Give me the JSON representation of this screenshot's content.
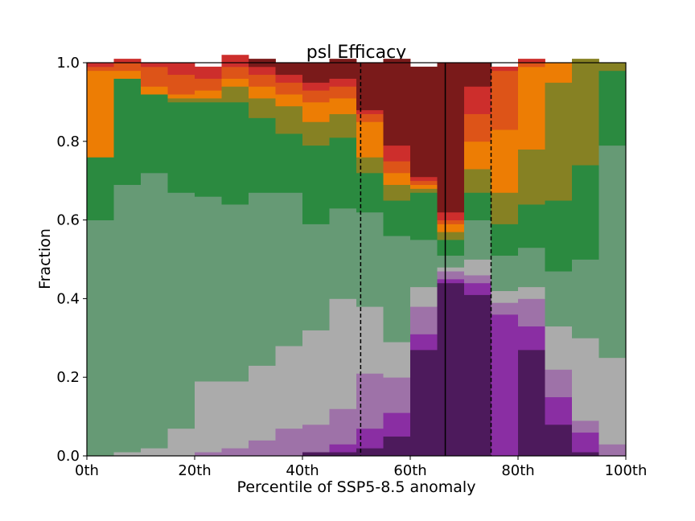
{
  "chart_data": {
    "type": "bar",
    "stacked": true,
    "title": "psl Efficacy",
    "xlabel": "Percentile of SSP5-8.5 anomaly",
    "ylabel": "Fraction",
    "xlim": [
      0,
      100
    ],
    "ylim": [
      0,
      1
    ],
    "bin_width": 5,
    "x": [
      0,
      5,
      10,
      15,
      20,
      25,
      30,
      35,
      40,
      45,
      50,
      55,
      60,
      65,
      70,
      75,
      80,
      85,
      90,
      95
    ],
    "xticks": [
      0,
      20,
      40,
      60,
      80,
      100
    ],
    "xtick_labels": [
      "0th",
      "20th",
      "40th",
      "60th",
      "80th",
      "100th"
    ],
    "yticks": [
      0.0,
      0.2,
      0.4,
      0.6,
      0.8,
      1.0
    ],
    "ytick_labels": [
      "0.0",
      "0.2",
      "0.4",
      "0.6",
      "0.8",
      "1.0"
    ],
    "vlines": [
      {
        "x": 50.8,
        "style": "dashed"
      },
      {
        "x": 66.5,
        "style": "solid"
      },
      {
        "x": 75.0,
        "style": "dashed"
      }
    ],
    "series": [
      {
        "color": "#4d1a5c",
        "values": [
          0,
          0,
          0,
          0,
          0,
          0,
          0,
          0,
          0.01,
          0.01,
          0.02,
          0.05,
          0.27,
          0.44,
          0.41,
          0,
          0.27,
          0.08,
          0.01,
          0
        ]
      },
      {
        "color": "#8a2ea3",
        "values": [
          0,
          0,
          0,
          0,
          0,
          0,
          0,
          0,
          0,
          0.02,
          0.05,
          0.06,
          0.04,
          0.01,
          0.03,
          0.36,
          0.06,
          0.07,
          0.05,
          0
        ]
      },
      {
        "color": "#9e72a8",
        "values": [
          0,
          0,
          0,
          0,
          0.01,
          0.02,
          0.04,
          0.07,
          0.07,
          0.09,
          0.14,
          0.09,
          0.07,
          0.02,
          0.02,
          0.03,
          0.07,
          0.07,
          0.03,
          0.03
        ]
      },
      {
        "color": "#ababab",
        "values": [
          0,
          0.01,
          0.02,
          0.07,
          0.18,
          0.17,
          0.19,
          0.21,
          0.24,
          0.28,
          0.17,
          0.09,
          0.05,
          0.01,
          0.04,
          0.03,
          0.03,
          0.11,
          0.21,
          0.22
        ]
      },
      {
        "color": "#669a75",
        "values": [
          0.6,
          0.68,
          0.7,
          0.6,
          0.47,
          0.45,
          0.44,
          0.39,
          0.27,
          0.23,
          0.24,
          0.27,
          0.12,
          0.03,
          0.1,
          0.09,
          0.1,
          0.14,
          0.2,
          0.54
        ]
      },
      {
        "color": "#2b8a40",
        "values": [
          0.16,
          0.27,
          0.2,
          0.23,
          0.24,
          0.26,
          0.19,
          0.15,
          0.2,
          0.18,
          0.1,
          0.09,
          0.12,
          0.04,
          0.07,
          0.08,
          0.11,
          0.18,
          0.24,
          0.19
        ]
      },
      {
        "color": "#868123",
        "values": [
          0,
          0,
          0,
          0.01,
          0.01,
          0.04,
          0.05,
          0.07,
          0.06,
          0.06,
          0.04,
          0.04,
          0.01,
          0.02,
          0.06,
          0.08,
          0.14,
          0.3,
          0.27,
          0.02
        ]
      },
      {
        "color": "#ed7d04",
        "values": [
          0.22,
          0.02,
          0.02,
          0.01,
          0.02,
          0.02,
          0.03,
          0.03,
          0.05,
          0.04,
          0.09,
          0.03,
          0.01,
          0.02,
          0.07,
          0.16,
          0.21,
          0.05,
          0,
          0
        ]
      },
      {
        "color": "#dd5418",
        "values": [
          0.01,
          0.02,
          0.05,
          0.05,
          0.03,
          0.03,
          0.03,
          0.03,
          0.03,
          0.03,
          0.02,
          0.03,
          0.01,
          0.01,
          0.07,
          0.15,
          0.01,
          0,
          0,
          0
        ]
      },
      {
        "color": "#cd2e2c",
        "values": [
          0.01,
          0.01,
          0.01,
          0.03,
          0.03,
          0.03,
          0.02,
          0.02,
          0.02,
          0.02,
          0.01,
          0.04,
          0.01,
          0.02,
          0.07,
          0.01,
          0.01,
          0,
          0,
          0
        ]
      },
      {
        "color": "#7a1a1a",
        "values": [
          0,
          0,
          0,
          0,
          0,
          0,
          0.02,
          0.03,
          0.05,
          0.05,
          0.12,
          0.22,
          0.28,
          0.38,
          0.06,
          0,
          0,
          0,
          0,
          0
        ]
      }
    ]
  }
}
